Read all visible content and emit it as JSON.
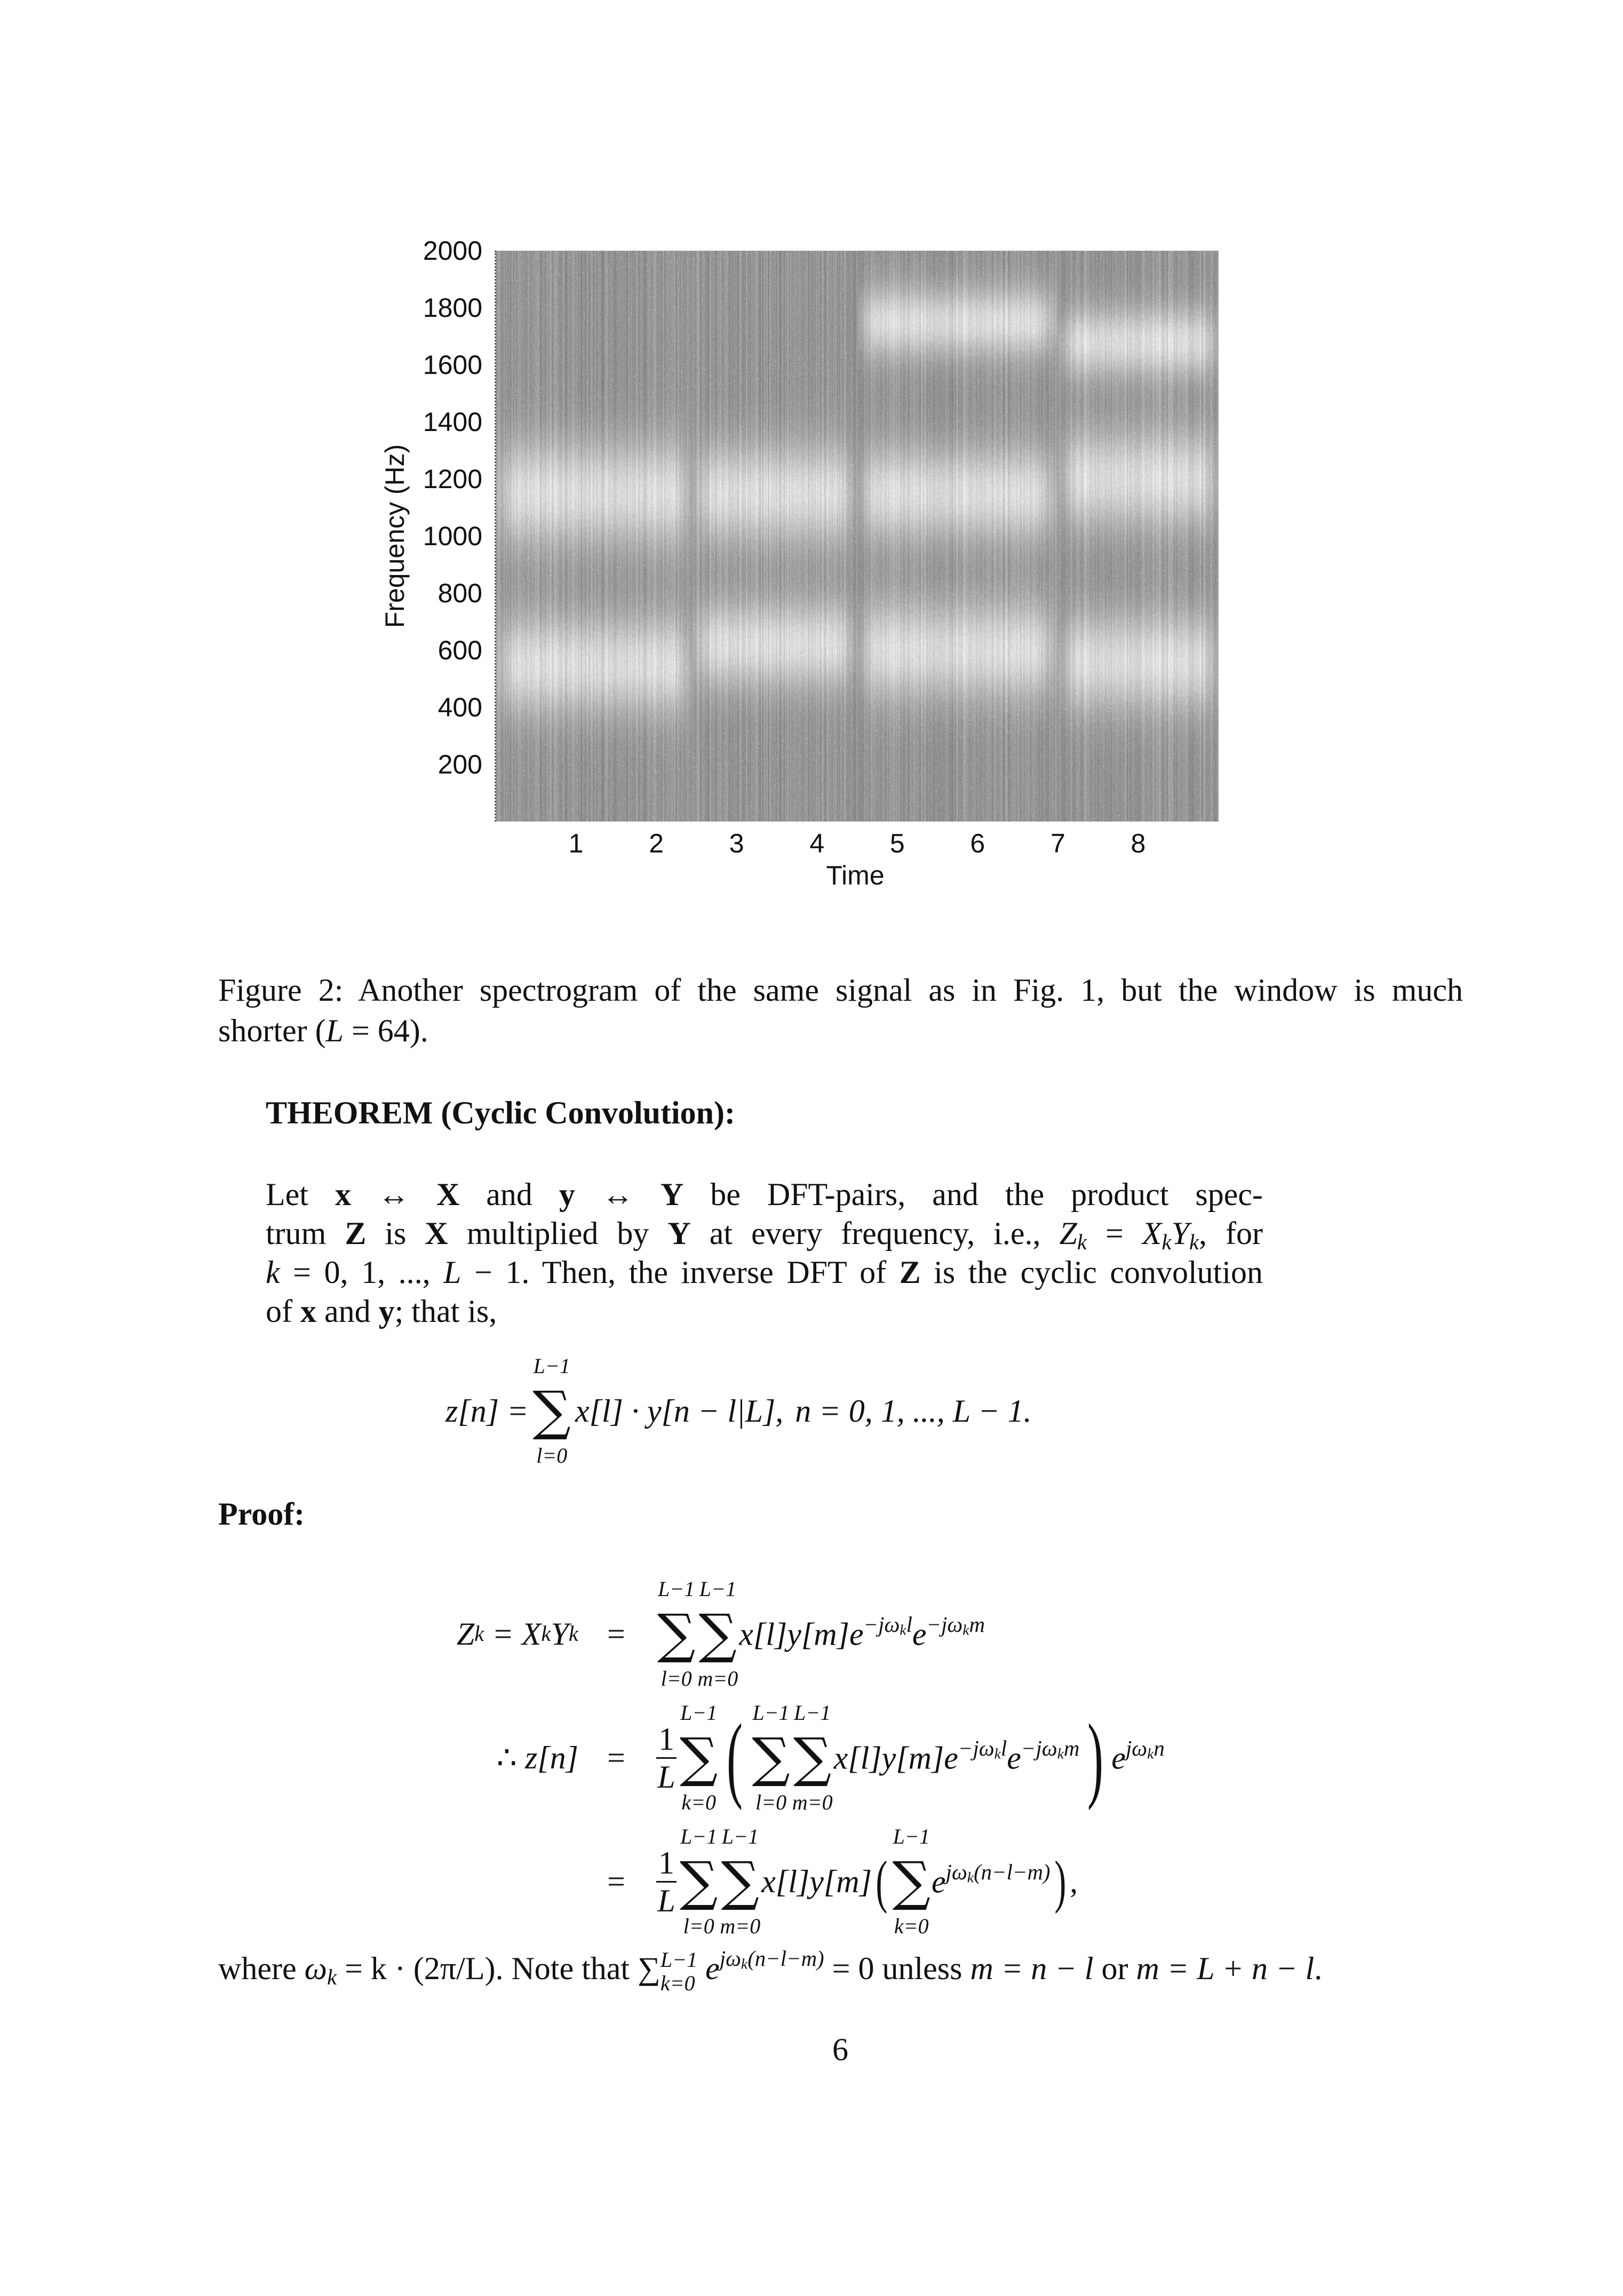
{
  "chart_data": {
    "type": "heatmap",
    "title": "",
    "xlabel": "Time",
    "ylabel": "Frequency (Hz)",
    "xlim": [
      0,
      9
    ],
    "ylim": [
      0,
      2000
    ],
    "x_ticks": [
      "1",
      "2",
      "3",
      "4",
      "5",
      "6",
      "7",
      "8"
    ],
    "y_ticks": [
      "200",
      "400",
      "600",
      "800",
      "1000",
      "1200",
      "1400",
      "1600",
      "1800",
      "2000"
    ],
    "colormap": "grayscale",
    "grid": false
  },
  "caption": {
    "line1": "Figure 2: Another spectrogram of the same signal as in Fig. 1, but the window is much",
    "line2_a": "shorter (",
    "line2_L": "L",
    "line2_b": " = 64)."
  },
  "theorem": {
    "heading": "THEOREM (Cyclic Convolution):",
    "lines": [
      [
        {
          "t": "Let ",
          "s": "r"
        },
        {
          "t": "x",
          "s": "b"
        },
        {
          "t": " ↔ ",
          "s": "r"
        },
        {
          "t": "X",
          "s": "b"
        },
        {
          "t": " and ",
          "s": "r"
        },
        {
          "t": "y",
          "s": "b"
        },
        {
          "t": " ↔ ",
          "s": "r"
        },
        {
          "t": "Y",
          "s": "b"
        },
        {
          "t": " be DFT-pairs, and the product spec-",
          "s": "r"
        }
      ],
      [
        {
          "t": "trum ",
          "s": "r"
        },
        {
          "t": "Z",
          "s": "b"
        },
        {
          "t": " is ",
          "s": "r"
        },
        {
          "t": "X",
          "s": "b"
        },
        {
          "t": " multiplied by ",
          "s": "r"
        },
        {
          "t": "Y",
          "s": "b"
        },
        {
          "t": " at every frequency, i.e., ",
          "s": "r"
        },
        {
          "t": "Z",
          "s": "i"
        },
        {
          "t": "k",
          "s": "sub"
        },
        {
          "t": " = ",
          "s": "r"
        },
        {
          "t": "X",
          "s": "i"
        },
        {
          "t": "k",
          "s": "sub"
        },
        {
          "t": "Y",
          "s": "i"
        },
        {
          "t": "k",
          "s": "sub"
        },
        {
          "t": ", for",
          "s": "r"
        }
      ],
      [
        {
          "t": "k",
          "s": "i"
        },
        {
          "t": " = 0, 1, ..., ",
          "s": "r"
        },
        {
          "t": "L",
          "s": "i"
        },
        {
          "t": " − 1. Then, the inverse DFT of ",
          "s": "r"
        },
        {
          "t": "Z",
          "s": "b"
        },
        {
          "t": " is the cyclic convolution",
          "s": "r"
        }
      ],
      [
        {
          "t": "of ",
          "s": "r"
        },
        {
          "t": "x",
          "s": "b"
        },
        {
          "t": " and ",
          "s": "r"
        },
        {
          "t": "y",
          "s": "b"
        },
        {
          "t": "; that is,",
          "s": "r"
        }
      ]
    ],
    "equation": {
      "lhs": "z[n] =",
      "sum_to": "L−1",
      "sum_from": "l=0",
      "body": "x[l] · y[n − l|L],",
      "range": "n = 0, 1, ..., L − 1."
    }
  },
  "proof": {
    "heading": "Proof:",
    "row1": {
      "lhs_Z": "Z",
      "lhs_k1": "k",
      "lhs_eq": " = X",
      "lhs_k2": "k",
      "lhs_Y": "Y",
      "lhs_k3": "k",
      "eq": "=",
      "to": "L−1",
      "from_l": "l=0",
      "from_m": "m=0",
      "body": "x[l]y[m]e",
      "sup1": "−jω",
      "sup1k": "k",
      "sup1l": "l",
      "e2": "e",
      "sup2": "−jω",
      "sup2k": "k",
      "sup2m": "m"
    },
    "row2": {
      "therefore": "∴ ",
      "lhs": "z[n]",
      "eq": "=",
      "num": "1",
      "den": "L",
      "to": "L−1",
      "from_k": "k=0",
      "from_l": "l=0",
      "from_m": "m=0",
      "body": "x[l]y[m]e",
      "sup1": "−jω",
      "sup1k": "k",
      "sup1l": "l",
      "e2": "e",
      "sup2": "−jω",
      "sup2k": "k",
      "sup2m": "m",
      "e3": "e",
      "sup3": "jω",
      "sup3k": "k",
      "sup3n": "n"
    },
    "row3": {
      "eq": "=",
      "num": "1",
      "den": "L",
      "to": "L−1",
      "from_l": "l=0",
      "from_m": "m=0",
      "body": "x[l]y[m]",
      "from_k": "k=0",
      "e": "e",
      "sup": "jω",
      "supk": "k",
      "sup_rest": "(n−l−m)",
      "comma": ","
    },
    "where": {
      "a": "where ",
      "omega": "ω",
      "k": "k",
      "b": " = k · (2π/L). Note that ",
      "sum": "∑",
      "sum_to": "L−1",
      "sum_from": "k=0",
      "e": " e",
      "sup": "jω",
      "supk": "k",
      "sup_rest": "(n−l−m)",
      "c": " = 0 unless ",
      "d": "m = n − l",
      "e2": " or ",
      "f": "m = L + n − l",
      "g": "."
    }
  },
  "page_number": "6"
}
